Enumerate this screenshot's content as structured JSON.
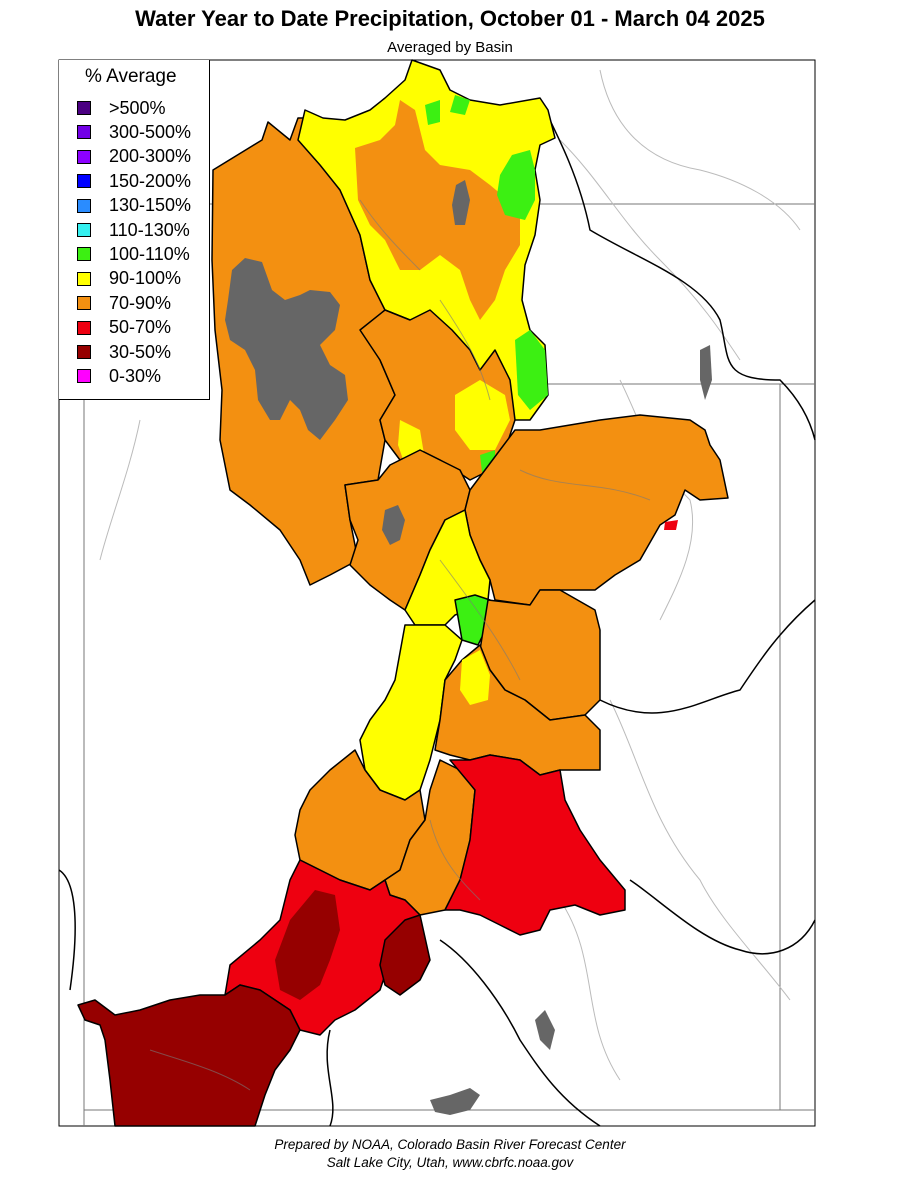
{
  "header": {
    "title": "Water Year to Date Precipitation, October 01  - March 04 2025",
    "subtitle": "Averaged by Basin"
  },
  "legend": {
    "title": "% Average",
    "items": [
      {
        "label": ">500%",
        "color": "#4b0082"
      },
      {
        "label": "300-500%",
        "color": "#7200e6"
      },
      {
        "label": "200-300%",
        "color": "#8c00ff"
      },
      {
        "label": "150-200%",
        "color": "#0000ff"
      },
      {
        "label": "130-150%",
        "color": "#2a8cff"
      },
      {
        "label": "110-130%",
        "color": "#35f0f0"
      },
      {
        "label": "100-110%",
        "color": "#3cf012"
      },
      {
        "label": "90-100%",
        "color": "#ffff00"
      },
      {
        "label": "70-90%",
        "color": "#f39011"
      },
      {
        "label": "50-70%",
        "color": "#ee0010"
      },
      {
        "label": "30-50%",
        "color": "#960000"
      },
      {
        "label": "0-30%",
        "color": "#ff00ff"
      }
    ]
  },
  "map": {
    "lake_color": "#666666",
    "basin_colors": {
      "orange": "#f39011",
      "yellow": "#ffff00",
      "green": "#3cf012",
      "red": "#ee0010",
      "darkred": "#960000"
    }
  },
  "footer": {
    "line1": "Prepared by NOAA, Colorado Basin River Forecast Center",
    "line2": "Salt Lake City, Utah, www.cbrfc.noaa.gov"
  }
}
